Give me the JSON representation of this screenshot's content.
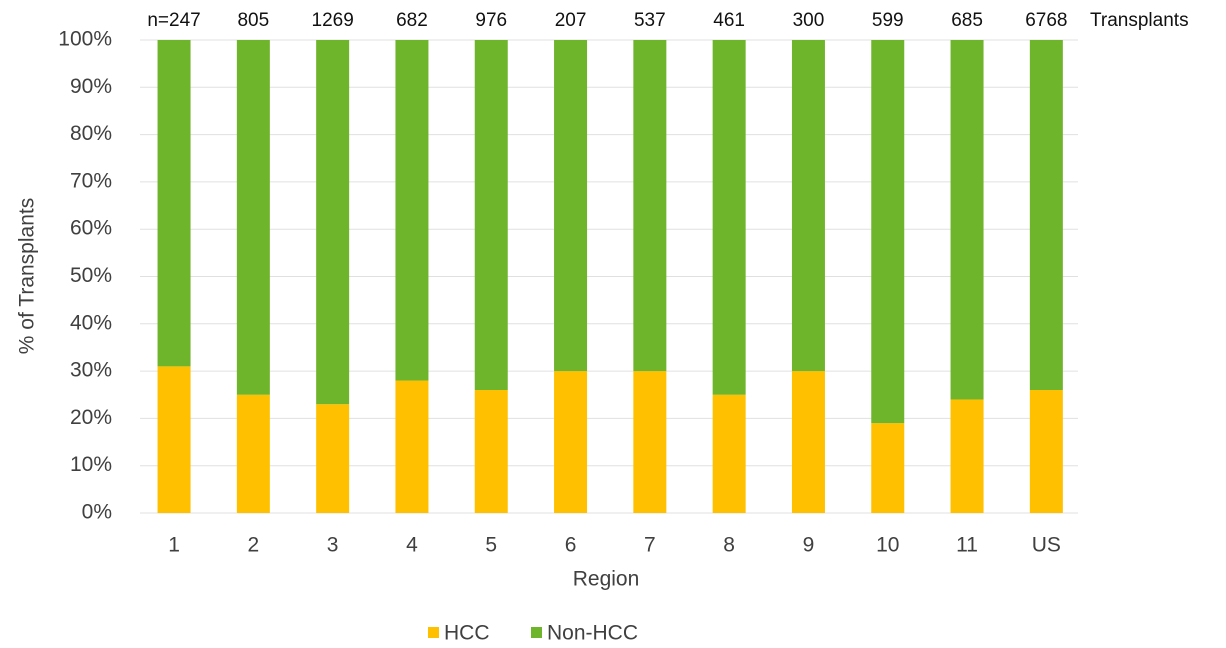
{
  "chart_data": {
    "type": "stacked_bar",
    "x_label": "Region",
    "y_label": "% of Transplants",
    "categories": [
      "1",
      "2",
      "3",
      "4",
      "5",
      "6",
      "7",
      "8",
      "9",
      "10",
      "11",
      "US"
    ],
    "series": [
      {
        "name": "HCC",
        "color": "#ffc000",
        "values": [
          31,
          25,
          23,
          28,
          26,
          30,
          30,
          25,
          30,
          19,
          24,
          26
        ]
      },
      {
        "name": "Non-HCC",
        "color": "#6fb52c",
        "values": [
          69,
          75,
          77,
          72,
          74,
          70,
          70,
          75,
          70,
          81,
          76,
          74
        ]
      }
    ],
    "n_labels": [
      "n=247",
      "805",
      "1269",
      "682",
      "976",
      "207",
      "537",
      "461",
      "300",
      "599",
      "685",
      "6768"
    ],
    "n_title": "Transplants",
    "ylim": [
      0,
      100
    ],
    "yticks": [
      {
        "value": 0,
        "label": "0%"
      },
      {
        "value": 10,
        "label": "10%"
      },
      {
        "value": 20,
        "label": "20%"
      },
      {
        "value": 30,
        "label": "30%"
      },
      {
        "value": 40,
        "label": "40%"
      },
      {
        "value": 50,
        "label": "50%"
      },
      {
        "value": 60,
        "label": "60%"
      },
      {
        "value": 70,
        "label": "70%"
      },
      {
        "value": 80,
        "label": "80%"
      },
      {
        "value": 90,
        "label": "90%"
      },
      {
        "value": 100,
        "label": "100%"
      }
    ],
    "grid": true,
    "legend": "bottom"
  }
}
